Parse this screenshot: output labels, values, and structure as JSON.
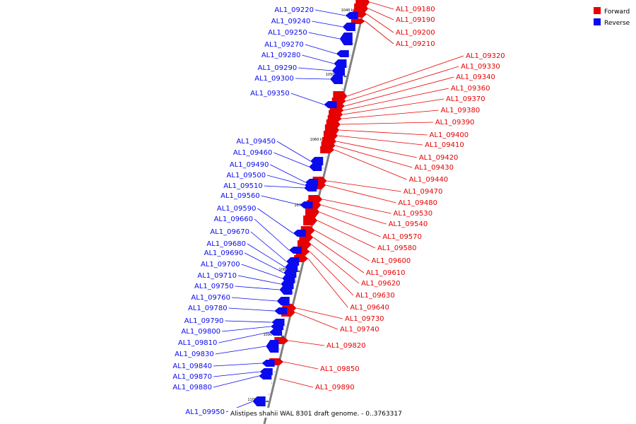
{
  "caption": "Alistipes shahii WAL 8301 draft genome. - 0..3763317",
  "colors": {
    "forward": "#e60000",
    "reverse": "#0a0aee",
    "backbone": "#808080"
  },
  "legend": [
    {
      "label": "Forward",
      "strand": "forward"
    },
    {
      "label": "Reverse",
      "strand": "reverse"
    }
  ],
  "ticks": [
    "1040 kbp",
    "1050 kbp",
    "1060 kbp",
    "1070 kbp",
    "1080 kbp",
    "1090 kbp",
    "1100 kbp"
  ],
  "forward_genes": [
    "AL1_09180",
    "AL1_09190",
    "AL1_09200",
    "AL1_09210",
    "AL1_09320",
    "AL1_09330",
    "AL1_09340",
    "AL1_09360",
    "AL1_09370",
    "AL1_09380",
    "AL1_09390",
    "AL1_09400",
    "AL1_09410",
    "AL1_09420",
    "AL1_09430",
    "AL1_09440",
    "AL1_09470",
    "AL1_09480",
    "AL1_09530",
    "AL1_09540",
    "AL1_09570",
    "AL1_09580",
    "AL1_09600",
    "AL1_09610",
    "AL1_09620",
    "AL1_09630",
    "AL1_09640",
    "AL1_09730",
    "AL1_09740",
    "AL1_09820",
    "AL1_09850",
    "AL1_09890"
  ],
  "reverse_genes": [
    "AL1_09220",
    "AL1_09240",
    "AL1_09250",
    "AL1_09270",
    "AL1_09280",
    "AL1_09290",
    "AL1_09300",
    "AL1_09350",
    "AL1_09450",
    "AL1_09460",
    "AL1_09490",
    "AL1_09500",
    "AL1_09510",
    "AL1_09560",
    "AL1_09590",
    "AL1_09660",
    "AL1_09670",
    "AL1_09680",
    "AL1_09690",
    "AL1_09700",
    "AL1_09710",
    "AL1_09750",
    "AL1_09760",
    "AL1_09780",
    "AL1_09790",
    "AL1_09800",
    "AL1_09810",
    "AL1_09830",
    "AL1_09840",
    "AL1_09870",
    "AL1_09880",
    "AL1_09950"
  ]
}
